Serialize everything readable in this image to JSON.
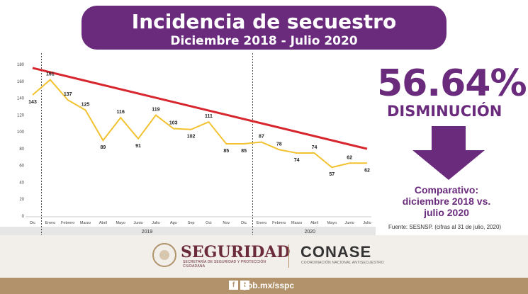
{
  "header": {
    "title": "Incidencia de secuestro",
    "subtitle": "Diciembre 2018 - Julio 2020"
  },
  "stat": {
    "percent": "56.64%",
    "label": "DISMINUCIÓN"
  },
  "comparativo": {
    "line1": "Comparativo:",
    "line2": "diciembre 2018 vs.",
    "line3": "julio 2020"
  },
  "fuente": "Fuente: SESNSP. (cifras al 31 de julio, 2020)",
  "logos": {
    "seguridad": "SEGURIDAD",
    "seguridad_sub": "SECRETARÍA DE SEGURIDAD Y PROTECCIÓN CIUDADANA",
    "conase": "CONASE",
    "conase_sub": "COORDINACIÓN NACIONAL ANTISECUESTRO"
  },
  "footer": {
    "link": "gob.mx/sspc",
    "social_icons": [
      "facebook-icon",
      "twitter-icon"
    ]
  },
  "colors": {
    "purple": "#6a2b7d",
    "gold": "#f2c230",
    "trend": "#d7262e",
    "tan": "#b1926b"
  },
  "chart_data": {
    "type": "line",
    "categories": [
      "Dic",
      "Enero",
      "Febrero",
      "Marzo",
      "Abril",
      "Mayo",
      "Junio",
      "Julio",
      "Ago",
      "Sep",
      "Oct",
      "Nov",
      "Dic",
      "Enero",
      "Febrero",
      "Marzo",
      "Abril",
      "Mayo",
      "Junio",
      "Julio"
    ],
    "values": [
      143,
      161,
      137,
      125,
      89,
      116,
      91,
      119,
      103,
      102,
      111,
      85,
      85,
      87,
      78,
      74,
      74,
      57,
      62,
      62
    ],
    "year_labels": [
      "2019",
      "2020"
    ],
    "ylim": [
      0,
      180
    ],
    "yticks": [
      "0",
      "20",
      "40",
      "60",
      "80",
      "100",
      "120",
      "140",
      "160",
      "180"
    ],
    "trendline": {
      "start": 175,
      "end": 79
    },
    "grid": false
  }
}
